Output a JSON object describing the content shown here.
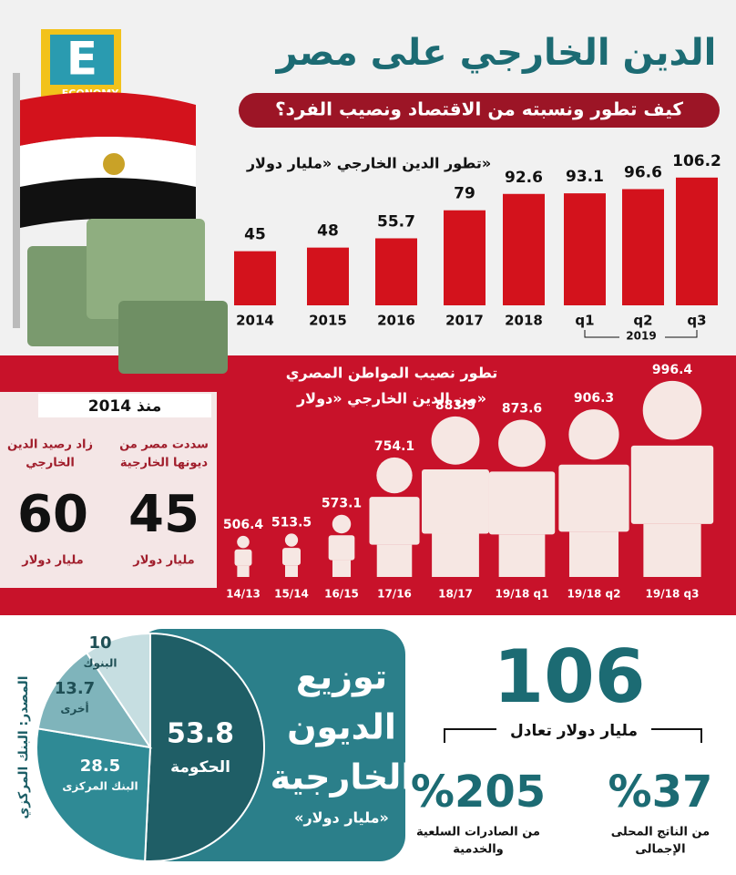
{
  "logo": {
    "letter": "E",
    "name": "ECONOMY"
  },
  "header": {
    "title": "الدين الخارجي على مصر",
    "subtitle": "كيف تطور ونسبته من الاقتصاد ونصيب الفرد؟"
  },
  "chart_data": [
    {
      "type": "bar",
      "title": "تطور الدين الخارجي «مليار دولار»",
      "categories": [
        "2014",
        "2015",
        "2016",
        "2017",
        "2018",
        "q1",
        "q2",
        "q3"
      ],
      "values": [
        45,
        48,
        55.7,
        79,
        92.6,
        93.1,
        96.6,
        106.2
      ],
      "group_label": "2019",
      "color": "#d3121c"
    },
    {
      "type": "pictograph",
      "title": [
        "تطور نصيب المواطن المصري",
        "من الدين الخارجي «دولار»"
      ],
      "categories": [
        "14/13",
        "15/14",
        "16/15",
        "17/16",
        "18/17",
        "19/18 q1",
        "19/18 q2",
        "19/18 q3"
      ],
      "values": [
        506.4,
        513.5,
        573.1,
        754.1,
        883.9,
        873.6,
        906.3,
        996.4
      ],
      "color": "#f6e7e3"
    },
    {
      "type": "pie",
      "title": [
        "توزيع",
        "الديون",
        "الخارجية"
      ],
      "subtitle": "«مليار دولار»",
      "categories": [
        "الحكومة",
        "البنك المركزى",
        "أخرى",
        "البنوك"
      ],
      "values": [
        53.8,
        28.5,
        13.7,
        10
      ],
      "colors": [
        "#1f5e66",
        "#2f8a95",
        "#7fb4bb",
        "#c6dee1"
      ]
    }
  ],
  "since_2014": {
    "heading": "منذ 2014",
    "items": [
      {
        "caption": [
          "زاد رصيد الدين",
          "الخارجي"
        ],
        "value": 60,
        "unit": "مليار دولار"
      },
      {
        "caption": [
          "سددت مصر من",
          "ديونها الخارجية"
        ],
        "value": 45,
        "unit": "مليار دولار"
      }
    ]
  },
  "equivalence": {
    "total": 106,
    "caption": "مليار دولار تعادل",
    "items": [
      {
        "value": "%205",
        "caption": [
          "من الصادرات السلعية",
          "والخدمية"
        ]
      },
      {
        "value": "%37",
        "caption": [
          "من الناتج المحلى",
          "الإجمالى"
        ]
      }
    ]
  },
  "source": "المصدر: البنك المركزي"
}
